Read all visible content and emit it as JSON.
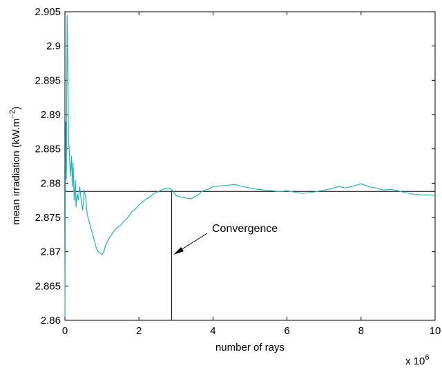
{
  "chart_data": {
    "type": "line",
    "title": "",
    "xlabel": "number of rays",
    "ylabel": "mean irradiation (kW.m",
    "ylabel_sup": "−2",
    "ylabel_close": ")",
    "x_multiplier": "x 10",
    "x_multiplier_exp": "6",
    "xlim": [
      0,
      10
    ],
    "ylim": [
      2.86,
      2.905
    ],
    "xticks": [
      0,
      2,
      4,
      6,
      8,
      10
    ],
    "xtick_labels": [
      "0",
      "2",
      "4",
      "6",
      "8",
      "10"
    ],
    "yticks": [
      2.86,
      2.865,
      2.87,
      2.875,
      2.88,
      2.885,
      2.89,
      2.895,
      2.9,
      2.905
    ],
    "ytick_labels": [
      "2.86",
      "2.865",
      "2.87",
      "2.875",
      "2.88",
      "2.885",
      "2.89",
      "2.895",
      "2.9",
      "2.905"
    ],
    "grid": false,
    "line_color": "#1fb5b5",
    "reference_line": {
      "y": 2.8788
    },
    "convergence_line": {
      "x": 2.88
    },
    "annotation": {
      "text": "Convergence",
      "x": 3.8,
      "y": 2.8728
    },
    "series": [
      {
        "x": [
          0,
          0.02,
          0.04,
          0.06,
          0.08,
          0.1,
          0.12,
          0.15,
          0.18,
          0.2,
          0.22,
          0.25,
          0.28,
          0.3,
          0.33,
          0.36,
          0.4,
          0.44,
          0.48,
          0.52,
          0.56,
          0.6,
          0.65,
          0.7,
          0.75,
          0.8,
          0.85,
          0.9,
          0.95,
          1.0,
          1.05,
          1.1,
          1.2,
          1.3,
          1.4,
          1.5,
          1.6,
          1.7,
          1.8,
          1.9,
          2.0,
          2.1,
          2.2,
          2.3,
          2.4,
          2.5,
          2.6,
          2.7,
          2.8,
          2.9,
          3.0,
          3.1,
          3.2,
          3.3,
          3.4,
          3.5,
          3.6,
          3.7,
          3.8,
          3.9,
          4.0,
          4.2,
          4.4,
          4.6,
          4.8,
          5.0,
          5.2,
          5.4,
          5.6,
          5.8,
          6.0,
          6.2,
          6.4,
          6.6,
          6.8,
          7.0,
          7.2,
          7.4,
          7.6,
          7.8,
          8.0,
          8.2,
          8.4,
          8.6,
          8.8,
          9.0,
          9.2,
          9.4,
          9.6,
          9.8,
          10.0
        ],
        "y": [
          2.8605,
          2.889,
          2.8805,
          2.9045,
          2.8955,
          2.8865,
          2.8845,
          2.881,
          2.884,
          2.8795,
          2.883,
          2.8775,
          2.8805,
          2.8765,
          2.8785,
          2.8775,
          2.8795,
          2.8775,
          2.876,
          2.879,
          2.878,
          2.8755,
          2.8745,
          2.8735,
          2.8725,
          2.8715,
          2.8705,
          2.87,
          2.8698,
          2.8696,
          2.87,
          2.871,
          2.872,
          2.8728,
          2.8735,
          2.8738,
          2.8745,
          2.875,
          2.8758,
          2.8762,
          2.8768,
          2.8773,
          2.8777,
          2.878,
          2.8785,
          2.8787,
          2.879,
          2.8792,
          2.8793,
          2.879,
          2.8782,
          2.878,
          2.8779,
          2.8778,
          2.8777,
          2.878,
          2.8783,
          2.8788,
          2.879,
          2.8792,
          2.8795,
          2.8796,
          2.8797,
          2.8798,
          2.8795,
          2.8793,
          2.8791,
          2.879,
          2.8789,
          2.8788,
          2.8789,
          2.8787,
          2.8785,
          2.8786,
          2.8788,
          2.879,
          2.8792,
          2.8795,
          2.8793,
          2.8796,
          2.8799,
          2.8795,
          2.8793,
          2.879,
          2.8791,
          2.8789,
          2.8786,
          2.8784,
          2.8783,
          2.8783,
          2.8782
        ]
      }
    ]
  }
}
